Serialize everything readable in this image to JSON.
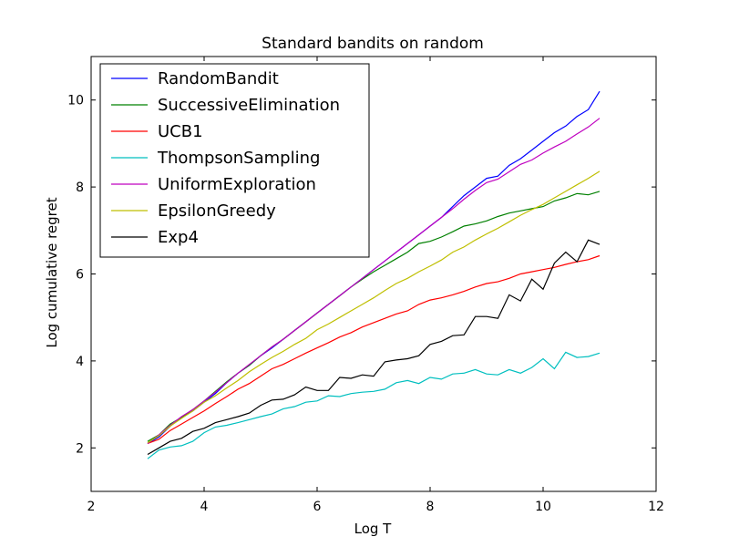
{
  "chart_data": {
    "type": "line",
    "title": "Standard bandits on random",
    "xlabel": "Log T",
    "ylabel": "Log cumulative regret",
    "xlim": [
      2,
      12
    ],
    "ylim": [
      1,
      11
    ],
    "xticks": [
      2,
      4,
      6,
      8,
      10,
      12
    ],
    "yticks": [
      2,
      4,
      6,
      8,
      10
    ],
    "grid": false,
    "legend_position": "top-left",
    "x": [
      3.0,
      3.2,
      3.4,
      3.6,
      3.8,
      4.0,
      4.2,
      4.4,
      4.6,
      4.8,
      5.0,
      5.2,
      5.4,
      5.6,
      5.8,
      6.0,
      6.2,
      6.4,
      6.6,
      6.8,
      7.0,
      7.2,
      7.4,
      7.6,
      7.8,
      8.0,
      8.2,
      8.4,
      8.6,
      8.8,
      9.0,
      9.2,
      9.4,
      9.6,
      9.8,
      10.0,
      10.2,
      10.4,
      10.6,
      10.8,
      11.0
    ],
    "series": [
      {
        "name": "RandomBandit",
        "color": "#0000ff",
        "values": [
          2.1,
          2.25,
          2.5,
          2.7,
          2.85,
          3.05,
          3.25,
          3.5,
          3.72,
          3.9,
          4.12,
          4.3,
          4.5,
          4.7,
          4.9,
          5.1,
          5.3,
          5.5,
          5.7,
          5.9,
          6.1,
          6.3,
          6.5,
          6.7,
          6.9,
          7.1,
          7.3,
          7.55,
          7.8,
          8.0,
          8.2,
          8.25,
          8.5,
          8.65,
          8.85,
          9.05,
          9.25,
          9.4,
          9.62,
          9.78,
          10.2
        ]
      },
      {
        "name": "SuccessiveElimination",
        "color": "#008000",
        "values": [
          2.15,
          2.3,
          2.55,
          2.7,
          2.88,
          3.08,
          3.3,
          3.52,
          3.72,
          3.9,
          4.12,
          4.32,
          4.5,
          4.7,
          4.9,
          5.1,
          5.3,
          5.5,
          5.7,
          5.88,
          6.05,
          6.2,
          6.35,
          6.5,
          6.7,
          6.75,
          6.85,
          6.97,
          7.1,
          7.15,
          7.22,
          7.32,
          7.4,
          7.45,
          7.5,
          7.55,
          7.68,
          7.75,
          7.85,
          7.82,
          7.9
        ]
      },
      {
        "name": "UCB1",
        "color": "#ff0000",
        "values": [
          2.1,
          2.2,
          2.4,
          2.55,
          2.7,
          2.85,
          3.02,
          3.18,
          3.35,
          3.48,
          3.65,
          3.82,
          3.92,
          4.05,
          4.18,
          4.3,
          4.42,
          4.55,
          4.65,
          4.78,
          4.88,
          4.98,
          5.08,
          5.15,
          5.3,
          5.4,
          5.45,
          5.52,
          5.6,
          5.7,
          5.78,
          5.82,
          5.9,
          6.0,
          6.05,
          6.1,
          6.15,
          6.22,
          6.28,
          6.33,
          6.42
        ]
      },
      {
        "name": "ThompsonSampling",
        "color": "#00bfbf",
        "values": [
          1.75,
          1.95,
          2.02,
          2.05,
          2.15,
          2.35,
          2.48,
          2.52,
          2.58,
          2.65,
          2.72,
          2.78,
          2.9,
          2.95,
          3.05,
          3.08,
          3.2,
          3.18,
          3.25,
          3.28,
          3.3,
          3.35,
          3.5,
          3.55,
          3.48,
          3.62,
          3.58,
          3.7,
          3.72,
          3.8,
          3.7,
          3.68,
          3.8,
          3.72,
          3.85,
          4.05,
          3.82,
          4.2,
          4.08,
          4.1,
          4.18
        ]
      },
      {
        "name": "UniformExploration",
        "color": "#bf00bf",
        "values": [
          2.1,
          2.3,
          2.52,
          2.72,
          2.88,
          3.08,
          3.28,
          3.5,
          3.72,
          3.92,
          4.12,
          4.32,
          4.5,
          4.7,
          4.9,
          5.1,
          5.3,
          5.5,
          5.7,
          5.9,
          6.1,
          6.3,
          6.5,
          6.7,
          6.9,
          7.1,
          7.3,
          7.5,
          7.72,
          7.92,
          8.1,
          8.18,
          8.35,
          8.52,
          8.62,
          8.78,
          8.92,
          9.05,
          9.22,
          9.38,
          9.58
        ]
      },
      {
        "name": "EpsilonGreedy",
        "color": "#bfbf00",
        "values": [
          2.12,
          2.28,
          2.5,
          2.68,
          2.85,
          3.05,
          3.2,
          3.38,
          3.55,
          3.75,
          3.92,
          4.08,
          4.22,
          4.38,
          4.52,
          4.72,
          4.85,
          5.0,
          5.15,
          5.3,
          5.45,
          5.62,
          5.78,
          5.9,
          6.05,
          6.18,
          6.32,
          6.5,
          6.62,
          6.78,
          6.92,
          7.05,
          7.2,
          7.35,
          7.48,
          7.6,
          7.75,
          7.9,
          8.05,
          8.2,
          8.36
        ]
      },
      {
        "name": "Exp4",
        "color": "#000000",
        "values": [
          1.85,
          2.0,
          2.15,
          2.22,
          2.38,
          2.45,
          2.58,
          2.65,
          2.72,
          2.8,
          2.98,
          3.1,
          3.12,
          3.22,
          3.4,
          3.32,
          3.32,
          3.62,
          3.6,
          3.68,
          3.65,
          3.98,
          4.02,
          4.05,
          4.12,
          4.38,
          4.45,
          4.58,
          4.6,
          5.02,
          5.02,
          4.98,
          5.52,
          5.38,
          5.88,
          5.65,
          6.25,
          6.5,
          6.28,
          6.78,
          6.68
        ]
      }
    ]
  }
}
